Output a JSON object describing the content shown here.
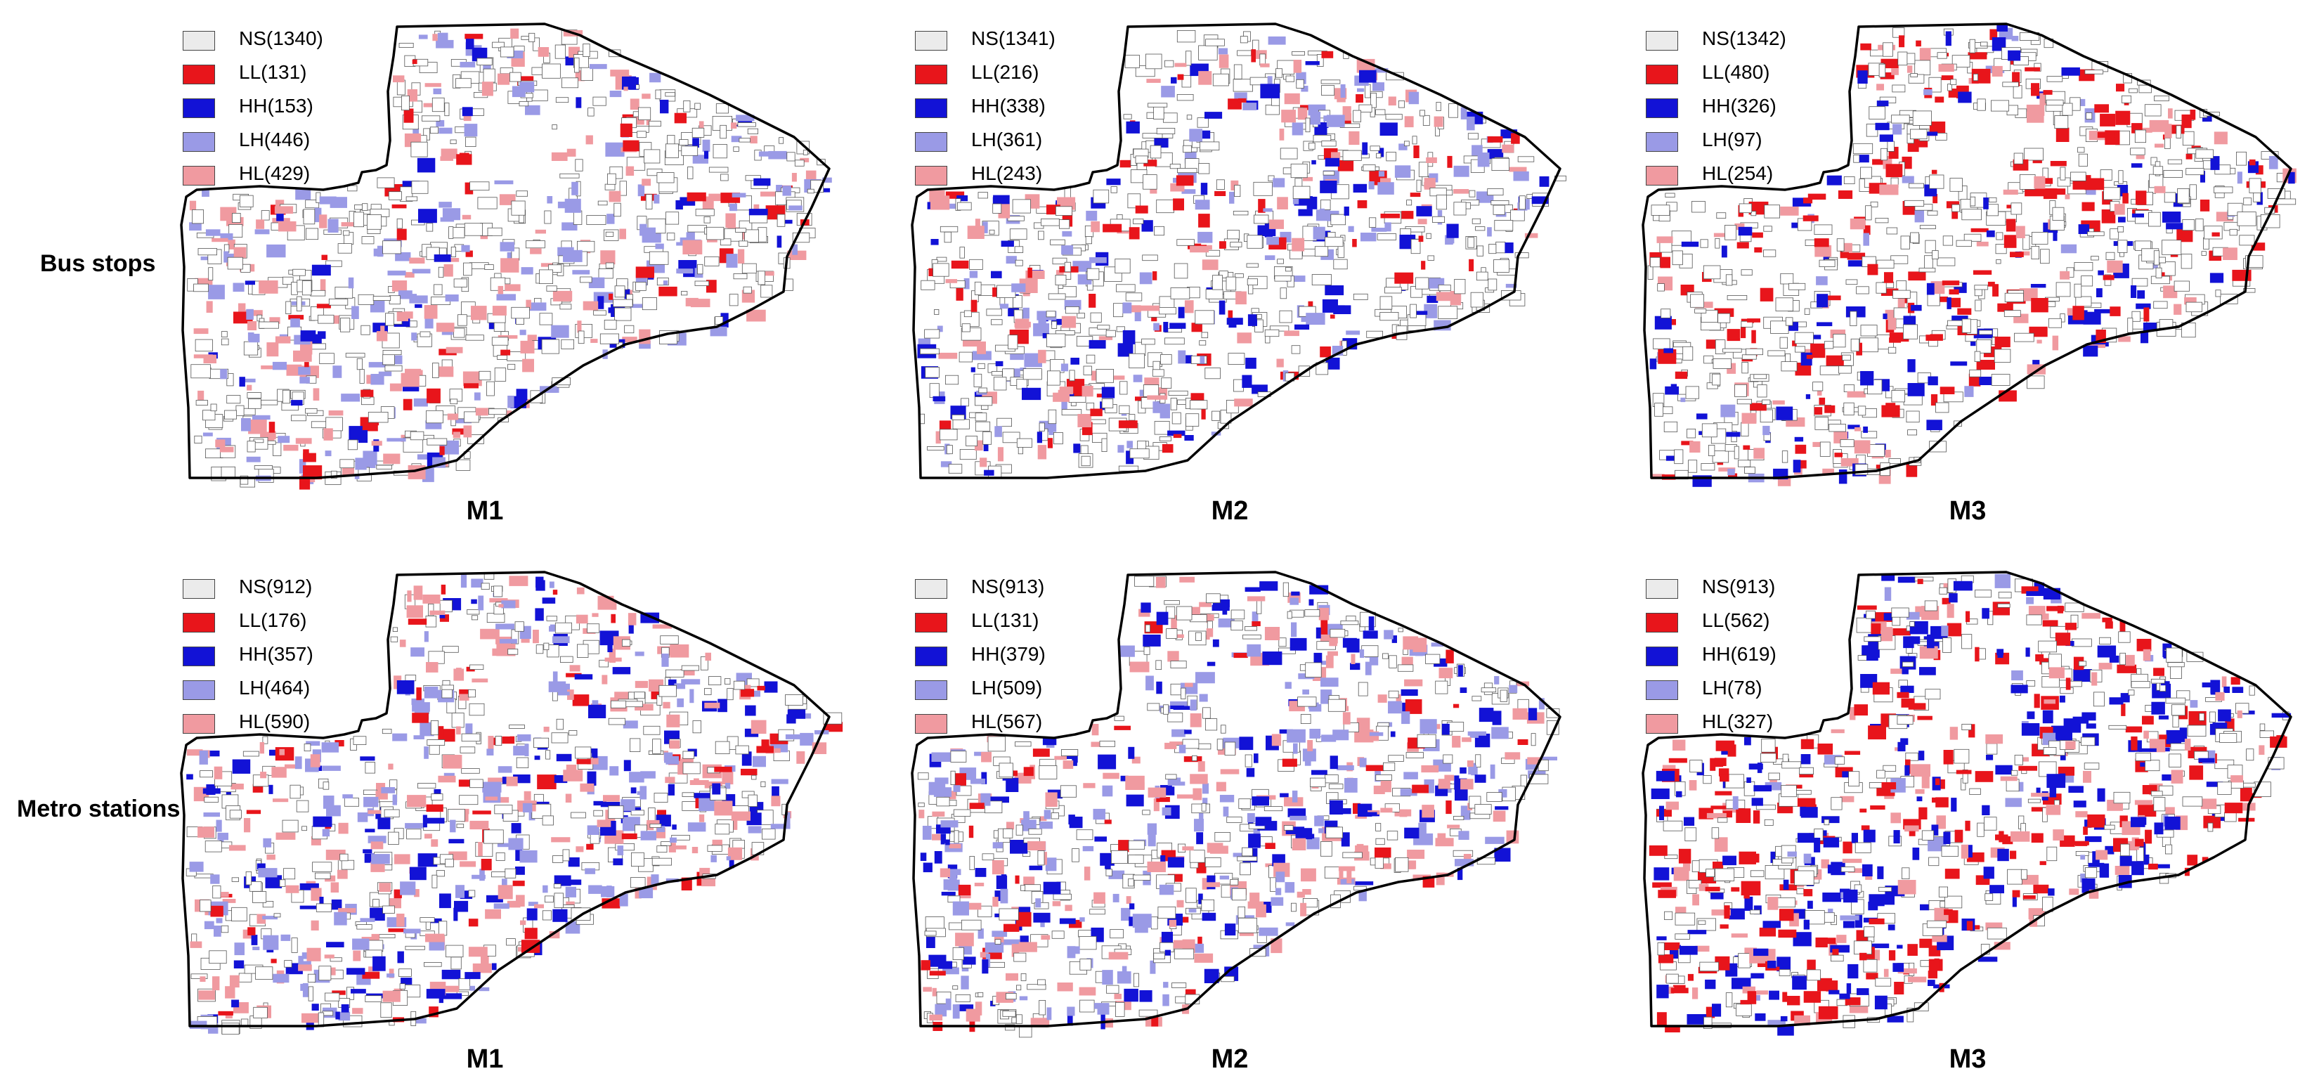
{
  "colors": {
    "NS": "#ebebeb",
    "LL": "#e8151b",
    "HH": "#1212d6",
    "LH": "#9a9ae6",
    "HL": "#f09aa0",
    "outline": "#000000",
    "parcel_edge": "#555555"
  },
  "rows": [
    {
      "label": "Bus stops",
      "panels": [
        {
          "title": "M1",
          "legend": [
            {
              "key": "NS",
              "label": "NS(1340)"
            },
            {
              "key": "LL",
              "label": "LL(131)"
            },
            {
              "key": "HH",
              "label": "HH(153)"
            },
            {
              "key": "LH",
              "label": "LH(446)"
            },
            {
              "key": "HL",
              "label": "HL(429)"
            }
          ]
        },
        {
          "title": "M2",
          "legend": [
            {
              "key": "NS",
              "label": "NS(1341)"
            },
            {
              "key": "LL",
              "label": "LL(216)"
            },
            {
              "key": "HH",
              "label": "HH(338)"
            },
            {
              "key": "LH",
              "label": "LH(361)"
            },
            {
              "key": "HL",
              "label": "HL(243)"
            }
          ]
        },
        {
          "title": "M3",
          "legend": [
            {
              "key": "NS",
              "label": "NS(1342)"
            },
            {
              "key": "LL",
              "label": "LL(480)"
            },
            {
              "key": "HH",
              "label": "HH(326)"
            },
            {
              "key": "LH",
              "label": "LH(97)"
            },
            {
              "key": "HL",
              "label": "HL(254)"
            }
          ]
        }
      ]
    },
    {
      "label": "Metro stations",
      "panels": [
        {
          "title": "M1",
          "legend": [
            {
              "key": "NS",
              "label": "NS(912)"
            },
            {
              "key": "LL",
              "label": "LL(176)"
            },
            {
              "key": "HH",
              "label": "HH(357)"
            },
            {
              "key": "LH",
              "label": "LH(464)"
            },
            {
              "key": "HL",
              "label": "HL(590)"
            }
          ]
        },
        {
          "title": "M2",
          "legend": [
            {
              "key": "NS",
              "label": "NS(913)"
            },
            {
              "key": "LL",
              "label": "LL(131)"
            },
            {
              "key": "HH",
              "label": "HH(379)"
            },
            {
              "key": "LH",
              "label": "LH(509)"
            },
            {
              "key": "HL",
              "label": "HL(567)"
            }
          ]
        },
        {
          "title": "M3",
          "legend": [
            {
              "key": "NS",
              "label": "NS(913)"
            },
            {
              "key": "LL",
              "label": "LL(562)"
            },
            {
              "key": "HH",
              "label": "HH(619)"
            },
            {
              "key": "LH",
              "label": "LH(78)"
            },
            {
              "key": "HL",
              "label": "HL(327)"
            }
          ]
        }
      ]
    }
  ]
}
